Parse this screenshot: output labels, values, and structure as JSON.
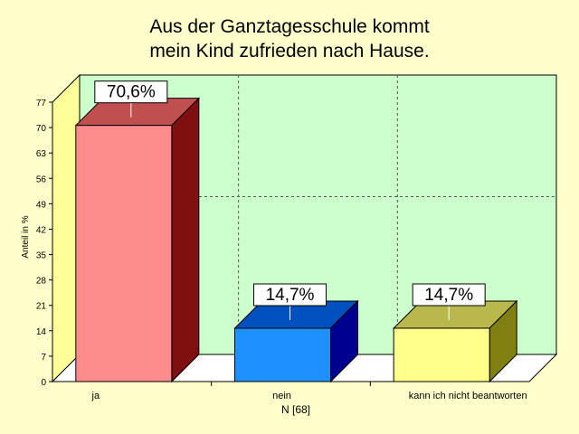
{
  "chart_data": {
    "type": "bar",
    "title_lines": [
      "Aus der Ganztagesschule kommt",
      "mein Kind zufrieden nach Hause."
    ],
    "categories": [
      "ja",
      "nein",
      "kann ich nicht beantworten"
    ],
    "values": [
      70.6,
      14.7,
      14.7
    ],
    "value_labels": [
      "70,6%",
      "14,7%",
      "14,7%"
    ],
    "ylabel": "Anteil in %",
    "xlabel": "N [68]",
    "ylim": [
      0,
      77
    ],
    "yticks": [
      0,
      7,
      14,
      21,
      28,
      35,
      42,
      49,
      56,
      63,
      70,
      77
    ],
    "grid": true,
    "colors": {
      "page_bg": "#ffffcc",
      "plot_bg": "#ccffcc",
      "side_wall": "#ffff99",
      "floor": "#ffffff",
      "bars": [
        {
          "front": "#ff8c8c",
          "top": "#c05050",
          "side": "#801010"
        },
        {
          "front": "#1e90ff",
          "top": "#0050c0",
          "side": "#000090"
        },
        {
          "front": "#ffff8c",
          "top": "#b8b84c",
          "side": "#808010"
        }
      ]
    }
  }
}
